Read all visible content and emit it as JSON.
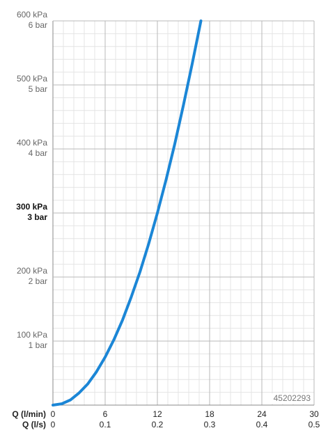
{
  "chart_data": {
    "type": "line",
    "xlabel": "Q (l/min)",
    "x2label": "Q (l/s)",
    "xlim": [
      0,
      30
    ],
    "xticks": [
      0,
      6,
      12,
      18,
      24,
      30
    ],
    "x2lim": [
      0,
      0.5
    ],
    "x2ticks": [
      0,
      0.1,
      0.2,
      0.3,
      0.4,
      0.5
    ],
    "ylim": [
      0,
      600
    ],
    "yticks": [
      {
        "value": 100,
        "label": "100 kPa",
        "label2": "1 bar"
      },
      {
        "value": 200,
        "label": "200 kPa",
        "label2": "2 bar"
      },
      {
        "value": 300,
        "label": "300 kPa",
        "label2": "3 bar"
      },
      {
        "value": 400,
        "label": "400 kPa",
        "label2": "4 bar"
      },
      {
        "value": 500,
        "label": "500 kPa",
        "label2": "5 bar"
      },
      {
        "value": 600,
        "label": "600 kPa",
        "label2": "6 bar"
      }
    ],
    "bold_ytick": 300,
    "grid": true,
    "minor_xstep": 1.2,
    "minor_ystep": 20,
    "annotation": "45202293",
    "series": [
      {
        "color": "#1b86d6",
        "x": [
          0,
          1,
          2,
          3,
          4,
          5,
          6,
          7,
          8,
          9,
          10,
          11,
          12,
          13,
          14,
          15,
          16,
          17
        ],
        "values": [
          0,
          2,
          8,
          19,
          33,
          52,
          75,
          102,
          133,
          169,
          208,
          252,
          300,
          352,
          408,
          469,
          533,
          600
        ]
      }
    ]
  }
}
